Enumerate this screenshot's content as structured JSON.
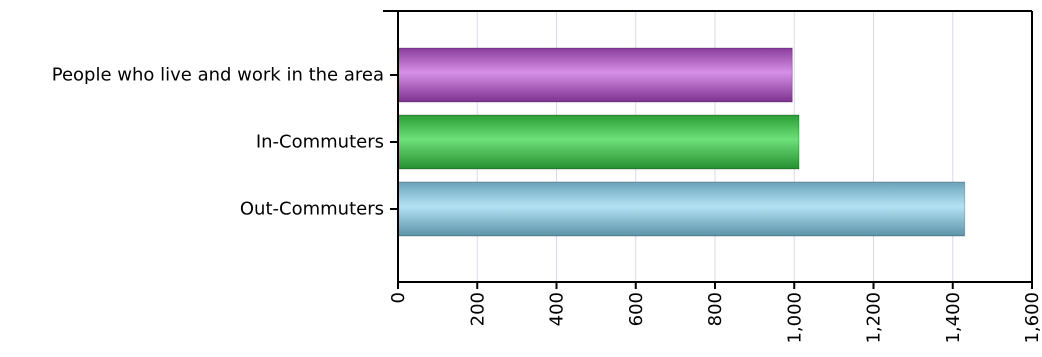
{
  "chart_data": {
    "type": "bar",
    "orientation": "horizontal",
    "categories": [
      "People who live and work in the area",
      "In-Commuters",
      "Out-Commuters"
    ],
    "values": [
      995,
      1012,
      1430
    ],
    "colors": [
      "#b45fc8",
      "#3fbf4a",
      "#8fc9e0"
    ],
    "xlim": [
      0,
      1600
    ],
    "xticks": [
      0,
      200,
      400,
      600,
      800,
      1000,
      1200,
      1400,
      1600
    ],
    "xtick_labels": [
      "0",
      "200",
      "400",
      "600",
      "800",
      "1,000",
      "1,200",
      "1,400",
      "1,600"
    ],
    "grid": true
  }
}
